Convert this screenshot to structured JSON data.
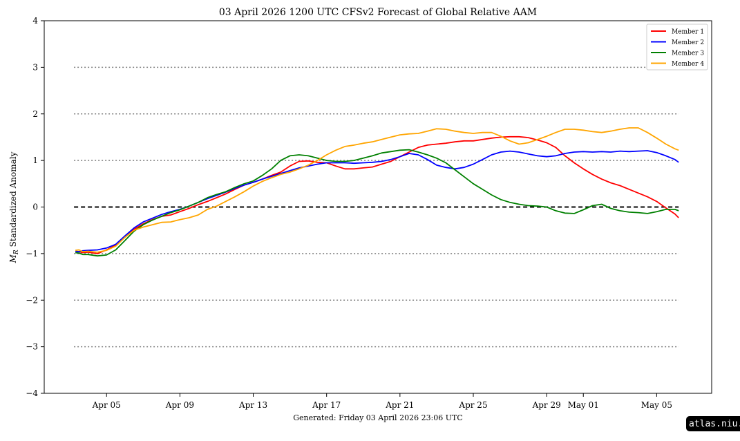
{
  "chart_data": {
    "type": "line",
    "title": "03  April  2026 1200 UTC   CFSv2 Forecast of Global Relative AAM",
    "ylabel_symbol": "M",
    "ylabel_subscript": "R",
    "ylabel_text": "Standardized Anomaly",
    "ylim": [
      -4,
      4
    ],
    "yticks": [
      4,
      3,
      2,
      1,
      0,
      -1,
      -2,
      -3,
      -4
    ],
    "ytick_labels": [
      "4",
      "3",
      "2",
      "1",
      "0",
      "−1",
      "−2",
      "−3",
      "−4"
    ],
    "xlim": [
      1.6,
      38.0
    ],
    "xticks": [
      {
        "day": 5,
        "label": "Apr 05"
      },
      {
        "day": 9,
        "label": "Apr 09"
      },
      {
        "day": 13,
        "label": "Apr 13"
      },
      {
        "day": 17,
        "label": "Apr 17"
      },
      {
        "day": 21,
        "label": "Apr 21"
      },
      {
        "day": 25,
        "label": "Apr 25"
      },
      {
        "day": 29,
        "label": "Apr 29"
      },
      {
        "day": 31,
        "label": "May 01"
      },
      {
        "day": 35,
        "label": "May 05"
      }
    ],
    "x_note": "x values are April day-of-month; values above 30 continue into May (31 = May 01)",
    "reference_lines": {
      "zero": {
        "y": 0,
        "style": "dashed",
        "color": "#000000"
      },
      "dotted": {
        "ys": [
          3,
          2,
          1,
          -1,
          -2,
          -3
        ],
        "style": "dotted",
        "color": "#808080"
      }
    },
    "legend_position": "top-right",
    "series": [
      {
        "name": "Member 1",
        "color": "#ff0000",
        "x": [
          3.3,
          3.5,
          3.7,
          4.0,
          4.5,
          5.0,
          5.5,
          6.0,
          6.5,
          7.0,
          7.5,
          8.0,
          8.5,
          9.0,
          9.5,
          10.0,
          10.5,
          11.0,
          11.5,
          12.0,
          12.5,
          13.0,
          13.5,
          14.0,
          14.5,
          15.0,
          15.5,
          16.0,
          16.5,
          17.0,
          17.5,
          18.0,
          18.5,
          19.0,
          19.5,
          20.0,
          20.5,
          21.0,
          21.5,
          22.0,
          22.5,
          23.0,
          23.5,
          24.0,
          24.5,
          25.0,
          25.5,
          26.0,
          26.5,
          27.0,
          27.5,
          28.0,
          28.5,
          29.0,
          29.5,
          30.0,
          30.5,
          31.0,
          31.5,
          32.0,
          32.5,
          33.0,
          33.5,
          34.0,
          34.5,
          35.0,
          35.5,
          36.0,
          36.2
        ],
        "y": [
          -0.95,
          -0.96,
          -0.98,
          -0.97,
          -1.0,
          -0.92,
          -0.82,
          -0.65,
          -0.48,
          -0.36,
          -0.27,
          -0.2,
          -0.17,
          -0.1,
          -0.03,
          0.05,
          0.12,
          0.2,
          0.28,
          0.38,
          0.47,
          0.53,
          0.6,
          0.68,
          0.75,
          0.88,
          0.98,
          0.99,
          0.96,
          0.95,
          0.88,
          0.82,
          0.82,
          0.84,
          0.86,
          0.92,
          0.98,
          1.08,
          1.18,
          1.28,
          1.33,
          1.35,
          1.37,
          1.4,
          1.42,
          1.42,
          1.45,
          1.48,
          1.5,
          1.51,
          1.51,
          1.49,
          1.44,
          1.38,
          1.28,
          1.1,
          0.95,
          0.82,
          0.7,
          0.6,
          0.52,
          0.46,
          0.38,
          0.3,
          0.22,
          0.12,
          -0.02,
          -0.15,
          -0.23
        ]
      },
      {
        "name": "Member 2",
        "color": "#0000ff",
        "x": [
          3.3,
          3.5,
          3.7,
          4.0,
          4.5,
          5.0,
          5.5,
          6.0,
          6.5,
          7.0,
          7.5,
          8.0,
          8.5,
          9.0,
          9.5,
          10.0,
          10.5,
          11.0,
          11.5,
          12.0,
          12.5,
          13.0,
          13.5,
          14.0,
          14.5,
          15.0,
          15.5,
          16.0,
          16.5,
          17.0,
          17.5,
          18.0,
          18.5,
          19.0,
          19.5,
          20.0,
          20.5,
          21.0,
          21.5,
          22.0,
          22.5,
          23.0,
          23.5,
          24.0,
          24.5,
          25.0,
          25.5,
          26.0,
          26.5,
          27.0,
          27.5,
          28.0,
          28.5,
          29.0,
          29.5,
          30.0,
          30.5,
          31.0,
          31.5,
          32.0,
          32.5,
          33.0,
          33.5,
          34.0,
          34.5,
          35.0,
          35.5,
          36.0,
          36.2
        ],
        "y": [
          -0.95,
          -0.96,
          -0.94,
          -0.93,
          -0.92,
          -0.88,
          -0.8,
          -0.62,
          -0.45,
          -0.32,
          -0.24,
          -0.16,
          -0.1,
          -0.05,
          0.02,
          0.1,
          0.18,
          0.25,
          0.32,
          0.4,
          0.47,
          0.53,
          0.6,
          0.66,
          0.72,
          0.78,
          0.84,
          0.88,
          0.92,
          0.95,
          0.95,
          0.95,
          0.94,
          0.95,
          0.96,
          0.98,
          1.02,
          1.08,
          1.15,
          1.12,
          1.02,
          0.9,
          0.85,
          0.82,
          0.85,
          0.92,
          1.02,
          1.12,
          1.18,
          1.2,
          1.18,
          1.14,
          1.1,
          1.08,
          1.1,
          1.15,
          1.18,
          1.19,
          1.18,
          1.19,
          1.18,
          1.2,
          1.19,
          1.2,
          1.21,
          1.17,
          1.1,
          1.02,
          0.96
        ]
      },
      {
        "name": "Member 3",
        "color": "#008000",
        "x": [
          3.3,
          3.5,
          3.7,
          4.0,
          4.5,
          5.0,
          5.5,
          6.0,
          6.5,
          7.0,
          7.5,
          8.0,
          8.5,
          9.0,
          9.5,
          10.0,
          10.5,
          11.0,
          11.5,
          12.0,
          12.5,
          13.0,
          13.5,
          14.0,
          14.5,
          15.0,
          15.5,
          16.0,
          16.5,
          17.0,
          17.5,
          18.0,
          18.5,
          19.0,
          19.5,
          20.0,
          20.5,
          21.0,
          21.5,
          22.0,
          22.5,
          23.0,
          23.5,
          24.0,
          24.5,
          25.0,
          25.5,
          26.0,
          26.5,
          27.0,
          27.5,
          28.0,
          28.5,
          29.0,
          29.5,
          30.0,
          30.5,
          31.0,
          31.5,
          32.0,
          32.5,
          33.0,
          33.5,
          34.0,
          34.5,
          35.0,
          35.5,
          36.0,
          36.2
        ],
        "y": [
          -0.98,
          -0.99,
          -1.02,
          -1.02,
          -1.05,
          -1.03,
          -0.92,
          -0.72,
          -0.52,
          -0.38,
          -0.28,
          -0.2,
          -0.12,
          -0.06,
          0.02,
          0.1,
          0.2,
          0.27,
          0.33,
          0.42,
          0.5,
          0.56,
          0.68,
          0.82,
          1.0,
          1.1,
          1.12,
          1.1,
          1.05,
          1.0,
          0.98,
          0.98,
          1.0,
          1.05,
          1.1,
          1.16,
          1.19,
          1.22,
          1.23,
          1.18,
          1.12,
          1.05,
          0.95,
          0.8,
          0.65,
          0.5,
          0.38,
          0.26,
          0.16,
          0.1,
          0.06,
          0.03,
          0.02,
          0.0,
          -0.08,
          -0.13,
          -0.14,
          -0.06,
          0.03,
          0.06,
          -0.03,
          -0.08,
          -0.11,
          -0.12,
          -0.14,
          -0.1,
          -0.05,
          -0.05,
          -0.08
        ]
      },
      {
        "name": "Member 4",
        "color": "#ffa500",
        "x": [
          3.3,
          3.5,
          3.7,
          4.0,
          4.5,
          5.0,
          5.5,
          6.0,
          6.5,
          7.0,
          7.5,
          8.0,
          8.5,
          9.0,
          9.5,
          10.0,
          10.5,
          11.0,
          11.5,
          12.0,
          12.5,
          13.0,
          13.5,
          14.0,
          14.5,
          15.0,
          15.5,
          16.0,
          16.5,
          17.0,
          17.5,
          18.0,
          18.5,
          19.0,
          19.5,
          20.0,
          20.5,
          21.0,
          21.5,
          22.0,
          22.5,
          23.0,
          23.5,
          24.0,
          24.5,
          25.0,
          25.5,
          26.0,
          26.5,
          27.0,
          27.5,
          28.0,
          28.5,
          29.0,
          29.5,
          30.0,
          30.5,
          31.0,
          31.5,
          32.0,
          32.5,
          33.0,
          33.5,
          34.0,
          34.5,
          35.0,
          35.5,
          36.0,
          36.2
        ],
        "y": [
          -0.93,
          -0.92,
          -0.96,
          -0.95,
          -0.97,
          -0.93,
          -0.84,
          -0.65,
          -0.5,
          -0.43,
          -0.38,
          -0.33,
          -0.32,
          -0.27,
          -0.23,
          -0.17,
          -0.05,
          0.02,
          0.12,
          0.22,
          0.33,
          0.45,
          0.55,
          0.63,
          0.7,
          0.75,
          0.82,
          0.9,
          1.0,
          1.12,
          1.22,
          1.3,
          1.33,
          1.37,
          1.4,
          1.45,
          1.5,
          1.55,
          1.57,
          1.58,
          1.63,
          1.68,
          1.67,
          1.63,
          1.6,
          1.58,
          1.6,
          1.6,
          1.52,
          1.42,
          1.35,
          1.38,
          1.45,
          1.52,
          1.6,
          1.67,
          1.67,
          1.65,
          1.62,
          1.6,
          1.63,
          1.67,
          1.7,
          1.7,
          1.6,
          1.48,
          1.35,
          1.25,
          1.22
        ]
      }
    ]
  },
  "footer": {
    "generated": "Generated: Friday  03  April  2026  23:06 UTC",
    "watermark": "atlas.niu.edu"
  }
}
